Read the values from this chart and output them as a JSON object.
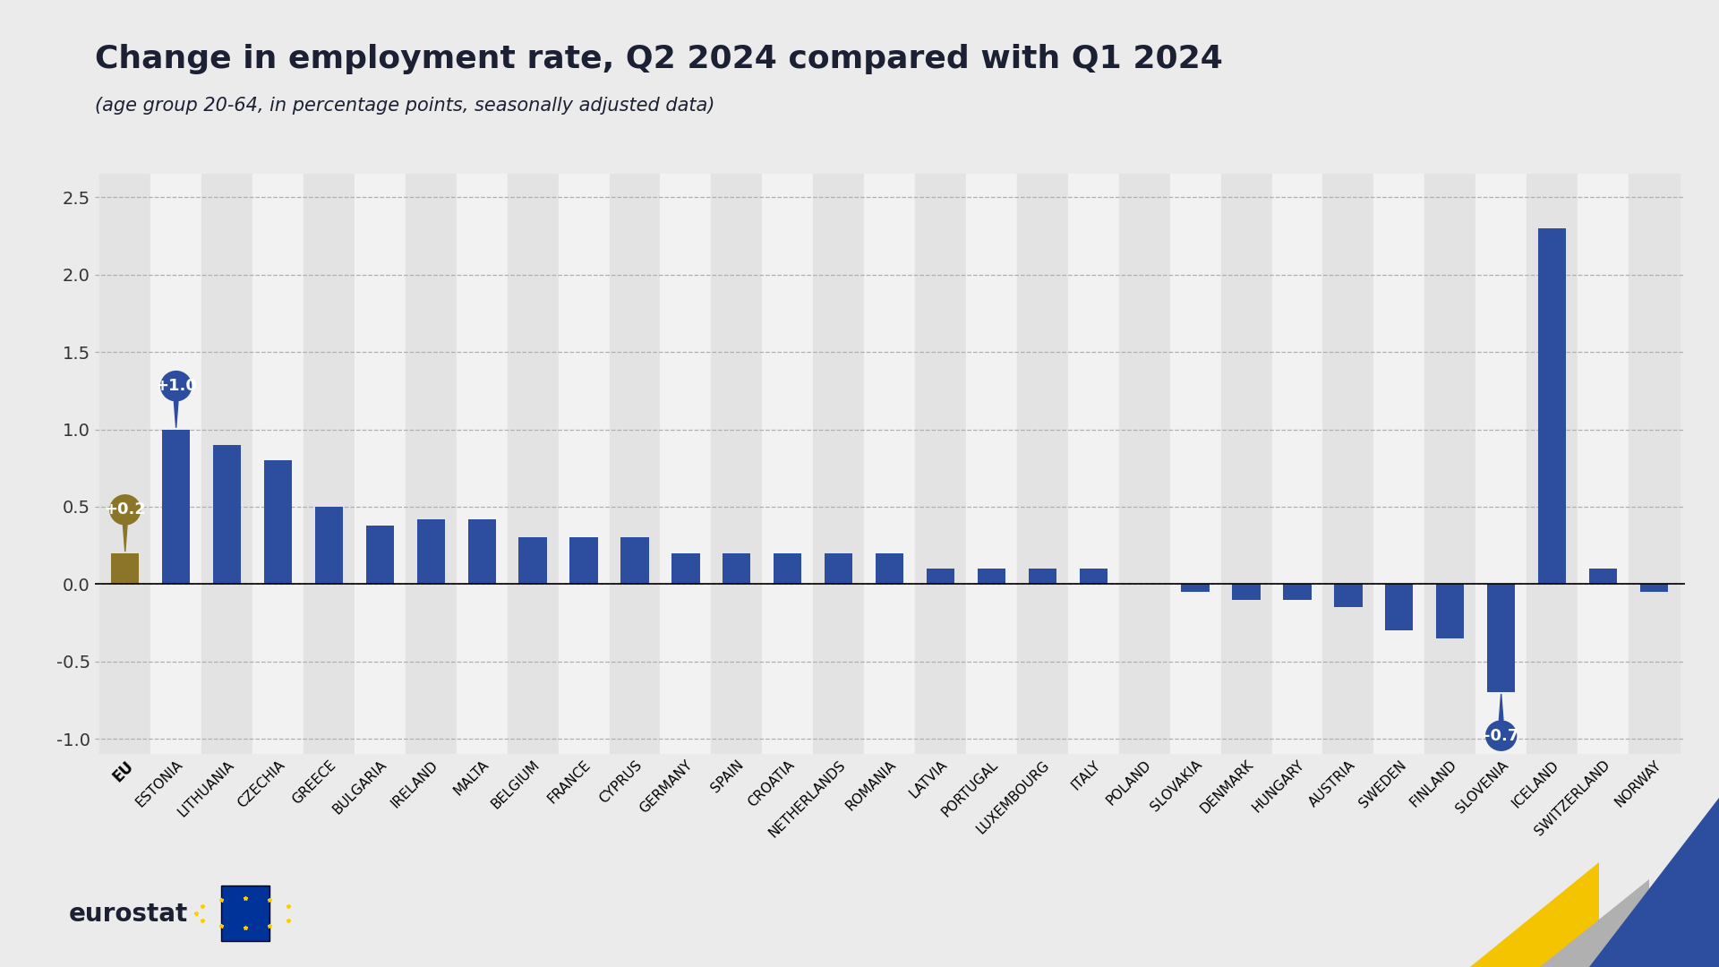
{
  "title": "Change in employment rate, Q2 2024 compared with Q1 2024",
  "subtitle": "(age group 20-64, in percentage points, seasonally adjusted data)",
  "categories": [
    "EU",
    "ESTONIA",
    "LITHUANIA",
    "CZECHIA",
    "GREECE",
    "BULGARIA",
    "IRELAND",
    "MALTA",
    "BELGIUM",
    "FRANCE",
    "CYPRUS",
    "GERMANY",
    "SPAIN",
    "CROATIA",
    "NETHERLANDS",
    "ROMANIA",
    "LATVIA",
    "PORTUGAL",
    "LUXEMBOURG",
    "ITALY",
    "POLAND",
    "SLOVAKIA",
    "DENMARK",
    "HUNGARY",
    "AUSTRIA",
    "SWEDEN",
    "FINLAND",
    "SLOVENIA",
    "ICELAND",
    "SWITZERLAND",
    "NORWAY"
  ],
  "values": [
    0.2,
    1.0,
    0.9,
    0.8,
    0.5,
    0.38,
    0.42,
    0.42,
    0.3,
    0.3,
    0.3,
    0.2,
    0.2,
    0.2,
    0.2,
    0.2,
    0.1,
    0.1,
    0.1,
    0.1,
    0.0,
    -0.05,
    -0.1,
    -0.1,
    -0.15,
    -0.3,
    -0.35,
    -0.7,
    2.3,
    0.1,
    -0.05
  ],
  "bar_color_default": "#2d4e9e",
  "bar_color_eu": "#8B7528",
  "ylim": [
    -1.1,
    2.65
  ],
  "yticks": [
    -1.0,
    -0.5,
    0.0,
    0.5,
    1.0,
    1.5,
    2.0,
    2.5
  ],
  "bg_color": "#ebebeb",
  "col_light": "#f2f2f2",
  "col_dark": "#e3e3e3",
  "grid_color": "#b0b0b0",
  "title_fontsize": 26,
  "subtitle_fontsize": 15,
  "tick_fontsize": 14,
  "xlabel_fontsize": 11
}
